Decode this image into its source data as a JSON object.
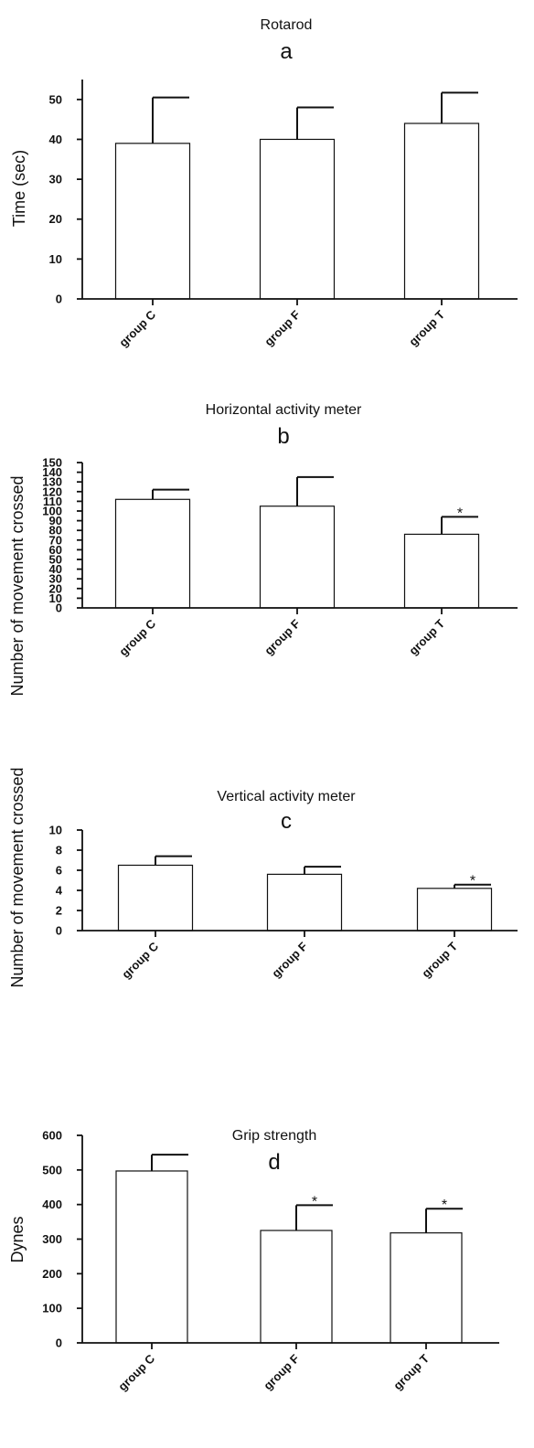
{
  "chart_data": [
    {
      "type": "bar",
      "title": "Rotarod",
      "panel": "a",
      "ylabel": "Time (sec)",
      "xlabel": "",
      "categories": [
        "group C",
        "group F",
        "group T"
      ],
      "values": [
        39,
        40,
        44
      ],
      "errors": [
        11.5,
        8,
        7.7
      ],
      "significance": [
        "",
        "",
        ""
      ],
      "ylim": [
        0,
        55
      ],
      "yticks": [
        0,
        10,
        20,
        30,
        40,
        50
      ],
      "ytick_labels": [
        "0",
        "10",
        "20",
        "30",
        "40",
        "50"
      ]
    },
    {
      "type": "bar",
      "title": "Horizontal activity meter",
      "panel": "b",
      "ylabel": "Number of movement crossed",
      "xlabel": "",
      "categories": [
        "group C",
        "group F",
        "group T"
      ],
      "values": [
        112,
        105,
        76
      ],
      "errors": [
        10,
        30,
        18
      ],
      "significance": [
        "",
        "",
        "*"
      ],
      "ylim": [
        0,
        150
      ],
      "yticks": [
        0,
        10,
        20,
        30,
        40,
        50,
        60,
        70,
        80,
        90,
        100,
        110,
        120,
        130,
        140,
        150
      ],
      "ytick_labels": [
        "0",
        "10",
        "20",
        "30",
        "40",
        "50",
        "60",
        "70",
        "80",
        "90",
        "100",
        "110",
        "120",
        "130",
        "140",
        "150"
      ]
    },
    {
      "type": "bar",
      "title": "Vertical activity meter",
      "panel": "c",
      "ylabel": "Number of movement crossed",
      "xlabel": "",
      "categories": [
        "group C",
        "group F",
        "group T"
      ],
      "values": [
        6.5,
        5.6,
        4.2
      ],
      "errors": [
        0.9,
        0.75,
        0.37
      ],
      "significance": [
        "",
        "",
        "*"
      ],
      "ylim": [
        0,
        10
      ],
      "yticks": [
        0,
        2,
        4,
        6,
        8,
        10
      ],
      "ytick_labels": [
        "0",
        "2",
        "4",
        "6",
        "8",
        "10"
      ]
    },
    {
      "type": "bar",
      "title": "Grip strength",
      "panel": "d",
      "ylabel": "Dynes",
      "xlabel": "",
      "categories": [
        "group C",
        "group F",
        "group T"
      ],
      "values": [
        497,
        325,
        318
      ],
      "errors": [
        47,
        73,
        70
      ],
      "significance": [
        "",
        "*",
        "*"
      ],
      "ylim": [
        0,
        600
      ],
      "yticks": [
        0,
        100,
        200,
        300,
        400,
        500,
        600
      ],
      "ytick_labels": [
        "0",
        "100",
        "200",
        "300",
        "400",
        "500",
        "600"
      ]
    }
  ]
}
